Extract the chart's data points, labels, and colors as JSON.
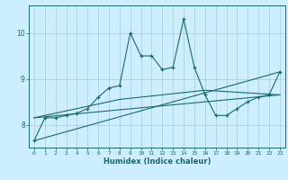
{
  "xlabel": "Humidex (Indice chaleur)",
  "bg_color": "#cceeff",
  "grid_color": "#aacccc",
  "line_color": "#1a6a6a",
  "xlim": [
    -0.5,
    23.5
  ],
  "ylim": [
    7.5,
    10.6
  ],
  "yticks": [
    8,
    9,
    10
  ],
  "xticks": [
    0,
    1,
    2,
    3,
    4,
    5,
    6,
    7,
    8,
    9,
    10,
    11,
    12,
    13,
    14,
    15,
    16,
    17,
    18,
    19,
    20,
    21,
    22,
    23
  ],
  "line1_x": [
    0,
    1,
    2,
    3,
    4,
    5,
    6,
    7,
    8,
    9,
    10,
    11,
    12,
    13,
    14,
    15,
    16,
    17,
    18,
    19,
    20,
    21,
    22,
    23
  ],
  "line1_y": [
    7.65,
    8.15,
    8.15,
    8.2,
    8.25,
    8.35,
    8.6,
    8.8,
    8.85,
    10.0,
    9.5,
    9.5,
    9.2,
    9.25,
    10.3,
    9.25,
    8.65,
    8.2,
    8.2,
    8.35,
    8.5,
    8.6,
    8.65,
    9.15
  ],
  "line2_x": [
    0,
    23
  ],
  "line2_y": [
    7.65,
    9.15
  ],
  "line3_x": [
    0,
    8,
    16,
    23
  ],
  "line3_y": [
    8.15,
    8.55,
    8.75,
    8.65
  ],
  "line4_x": [
    0,
    23
  ],
  "line4_y": [
    8.15,
    8.65
  ]
}
